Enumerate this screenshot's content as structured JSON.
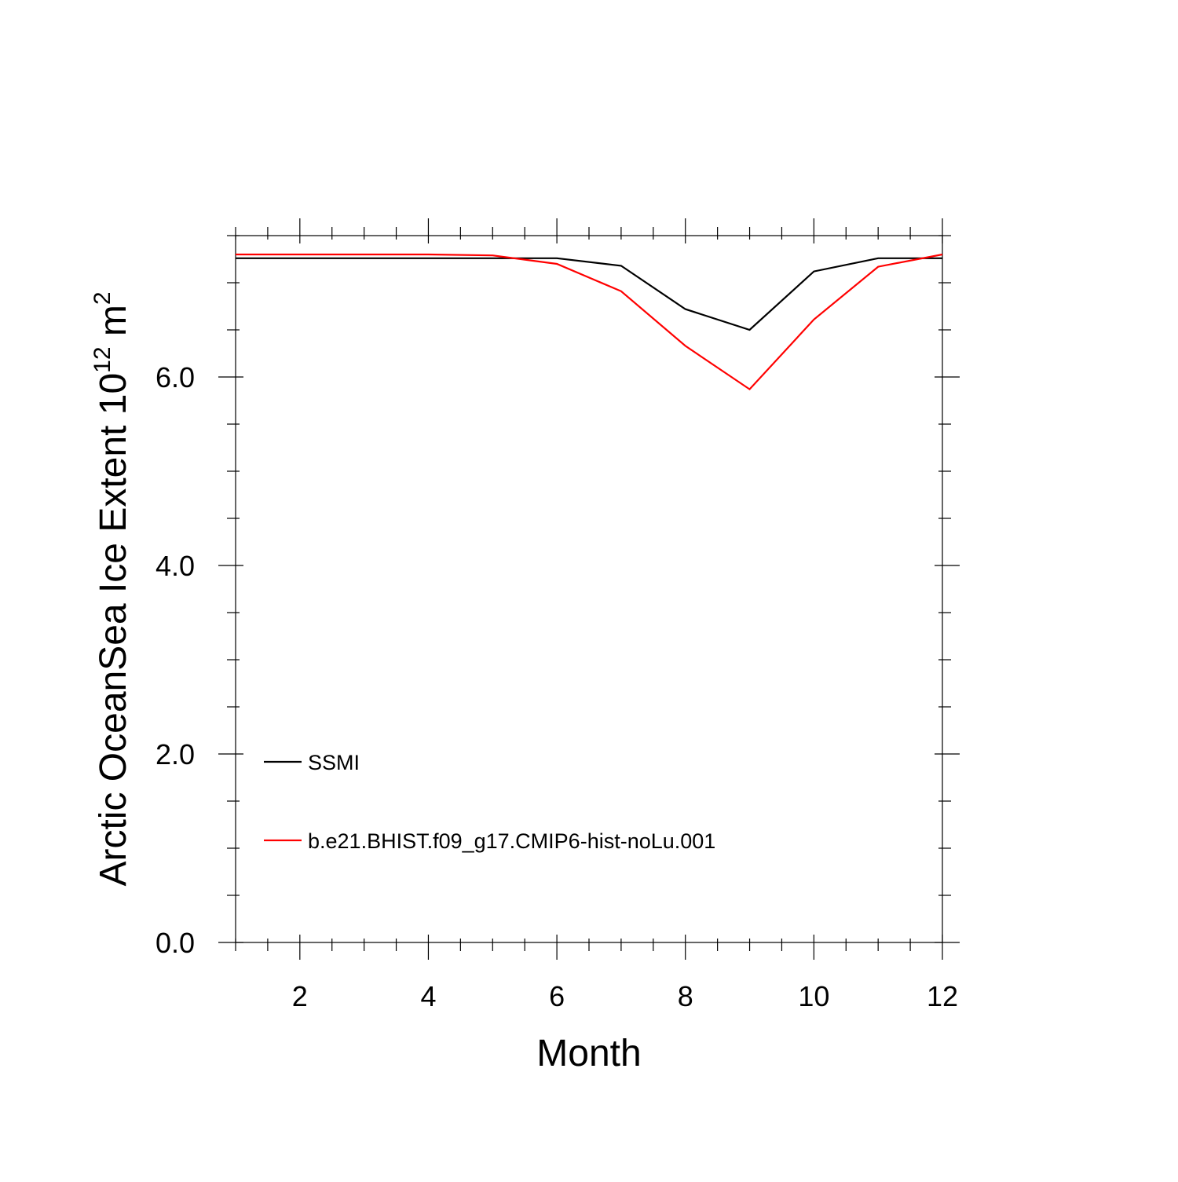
{
  "chart_data": {
    "type": "line",
    "xlabel": "Month",
    "ylabel": {
      "text": "Arctic OceanSea Ice Extent 10",
      "exponent": "12",
      "unit": "m",
      "unit_exponent": "2"
    },
    "xlim": [
      1,
      12
    ],
    "ylim": [
      0,
      7.5
    ],
    "x": [
      1,
      2,
      3,
      4,
      5,
      6,
      7,
      8,
      9,
      10,
      11,
      12
    ],
    "x_ticks": [
      2,
      4,
      6,
      8,
      10,
      12
    ],
    "x_tick_labels": [
      "2",
      "4",
      "6",
      "8",
      "10",
      "12"
    ],
    "y_ticks": [
      0,
      2,
      4,
      6
    ],
    "y_tick_labels": [
      "0.0",
      "2.0",
      "4.0",
      "6.0"
    ],
    "grid": false,
    "legend": "bottom-left",
    "series": [
      {
        "name": "SSMI",
        "color": "#000000",
        "values": [
          7.26,
          7.26,
          7.26,
          7.26,
          7.26,
          7.26,
          7.18,
          6.72,
          6.5,
          7.12,
          7.26,
          7.26
        ]
      },
      {
        "name": "b.e21.BHIST.f09_g17.CMIP6-hist-noLu.001",
        "color": "#ff0000",
        "values": [
          7.3,
          7.3,
          7.3,
          7.3,
          7.29,
          7.2,
          6.91,
          6.33,
          5.87,
          6.61,
          7.17,
          7.3
        ]
      }
    ]
  }
}
